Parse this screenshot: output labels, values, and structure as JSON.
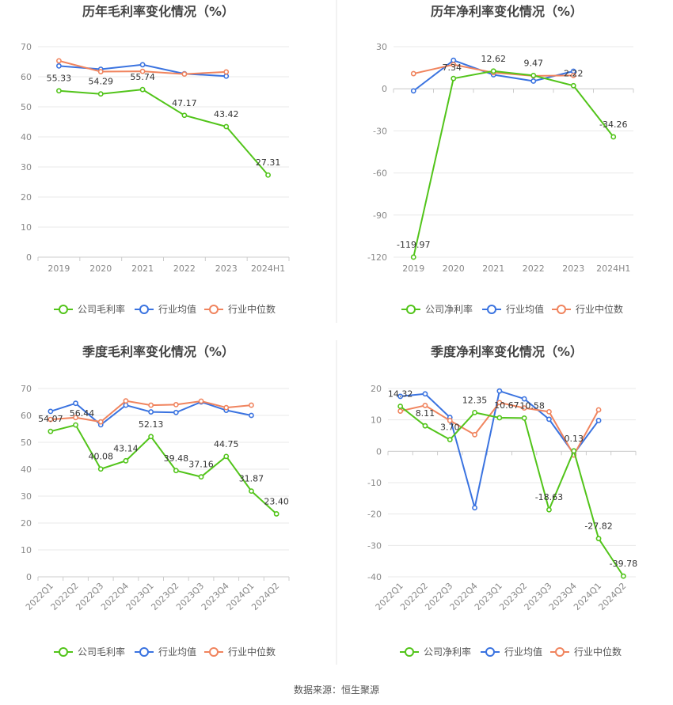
{
  "colors": {
    "company": "#52c41a",
    "industry_avg": "#3a73e0",
    "industry_median": "#f0845e",
    "divider": "#e6e6e6"
  },
  "legend": {
    "gross_company": "公司毛利率",
    "net_company": "公司净利率",
    "industry_avg": "行业均值",
    "industry_median": "行业中位数"
  },
  "source": "数据来源：恒生聚源",
  "chart_data": [
    {
      "id": "annual_gross",
      "type": "line",
      "title": "历年毛利率变化情况（%）",
      "categories": [
        "2019",
        "2020",
        "2021",
        "2022",
        "2023",
        "2024H1"
      ],
      "ylim": [
        0,
        70
      ],
      "yticks": [
        0,
        10,
        20,
        30,
        40,
        50,
        60,
        70
      ],
      "rotate_x": false,
      "legend_key": "gross_company",
      "series": [
        {
          "name": "公司毛利率",
          "role": "company",
          "values": [
            55.33,
            54.29,
            55.74,
            47.17,
            43.42,
            27.31
          ],
          "labels": [
            "55.33",
            "54.29",
            "55.74",
            "47.17",
            "43.42",
            "27.31"
          ]
        },
        {
          "name": "行业均值",
          "role": "industry_avg",
          "values": [
            63.6,
            62.5,
            64.0,
            61.0,
            60.2,
            null
          ]
        },
        {
          "name": "行业中位数",
          "role": "industry_median",
          "values": [
            65.3,
            61.7,
            61.8,
            60.9,
            61.6,
            null
          ]
        }
      ]
    },
    {
      "id": "annual_net",
      "type": "line",
      "title": "历年净利率变化情况（%）",
      "categories": [
        "2019",
        "2020",
        "2021",
        "2022",
        "2023",
        "2024H1"
      ],
      "ylim": [
        -120,
        30
      ],
      "yticks": [
        -120,
        -90,
        -60,
        -30,
        0,
        30
      ],
      "rotate_x": false,
      "legend_key": "net_company",
      "series": [
        {
          "name": "公司净利率",
          "role": "company",
          "values": [
            -119.97,
            7.34,
            12.62,
            9.47,
            2.22,
            -34.26
          ],
          "labels": [
            "-119.97",
            "7.34",
            "12.62",
            "9.47",
            "2.22",
            "-34.26"
          ]
        },
        {
          "name": "行业均值",
          "role": "industry_avg",
          "values": [
            -1.5,
            20.3,
            10.0,
            5.5,
            12.5,
            null
          ]
        },
        {
          "name": "行业中位数",
          "role": "industry_median",
          "values": [
            10.8,
            17.2,
            11.5,
            9.2,
            9.5,
            null
          ]
        }
      ]
    },
    {
      "id": "quarterly_gross",
      "type": "line",
      "title": "季度毛利率变化情况（%）",
      "categories": [
        "2022Q1",
        "2022Q2",
        "2022Q3",
        "2022Q4",
        "2023Q1",
        "2023Q2",
        "2023Q3",
        "2023Q4",
        "2024Q1",
        "2024Q2"
      ],
      "ylim": [
        0,
        70
      ],
      "yticks": [
        0,
        10,
        20,
        30,
        40,
        50,
        60,
        70
      ],
      "rotate_x": true,
      "legend_key": "gross_company",
      "series": [
        {
          "name": "公司毛利率",
          "role": "company",
          "values": [
            54.07,
            56.44,
            40.08,
            43.14,
            52.13,
            39.48,
            37.16,
            44.75,
            31.87,
            23.4
          ],
          "labels": [
            "54.07",
            "56.44",
            "40.08",
            "43.14",
            "52.13",
            "39.48",
            "37.16",
            "44.75",
            "31.87",
            "23.40"
          ]
        },
        {
          "name": "行业均值",
          "role": "industry_avg",
          "values": [
            61.5,
            64.5,
            56.5,
            63.8,
            61.3,
            61.1,
            65.0,
            61.9,
            60.0,
            null
          ]
        },
        {
          "name": "行业中位数",
          "role": "industry_median",
          "values": [
            58.5,
            59.2,
            57.6,
            65.4,
            63.8,
            64.0,
            65.3,
            62.9,
            63.8,
            null
          ]
        }
      ]
    },
    {
      "id": "quarterly_net",
      "type": "line",
      "title": "季度净利率变化情况（%）",
      "categories": [
        "2022Q1",
        "2022Q2",
        "2022Q3",
        "2022Q4",
        "2023Q1",
        "2023Q2",
        "2023Q3",
        "2023Q4",
        "2024Q1",
        "2024Q2"
      ],
      "ylim": [
        -40,
        20
      ],
      "yticks": [
        -40,
        -30,
        -20,
        -10,
        0,
        10,
        20
      ],
      "rotate_x": true,
      "legend_key": "net_company",
      "series": [
        {
          "name": "公司净利率",
          "role": "company",
          "values": [
            14.32,
            8.11,
            3.7,
            12.35,
            10.67,
            10.58,
            -18.63,
            0.13,
            -27.82,
            -39.78
          ],
          "labels": [
            "14.32",
            "8.11",
            "3.70",
            "12.35",
            "10.67",
            "10.58",
            "-18.63",
            "0.13",
            "-27.82",
            "-39.78"
          ]
        },
        {
          "name": "行业均值",
          "role": "industry_avg",
          "values": [
            17.5,
            18.3,
            10.8,
            -18.0,
            19.2,
            16.7,
            10.2,
            -0.8,
            9.8,
            null
          ]
        },
        {
          "name": "行业中位数",
          "role": "industry_median",
          "values": [
            12.8,
            14.6,
            9.8,
            5.3,
            15.5,
            13.8,
            12.6,
            -1.2,
            13.2,
            null
          ]
        }
      ]
    }
  ]
}
